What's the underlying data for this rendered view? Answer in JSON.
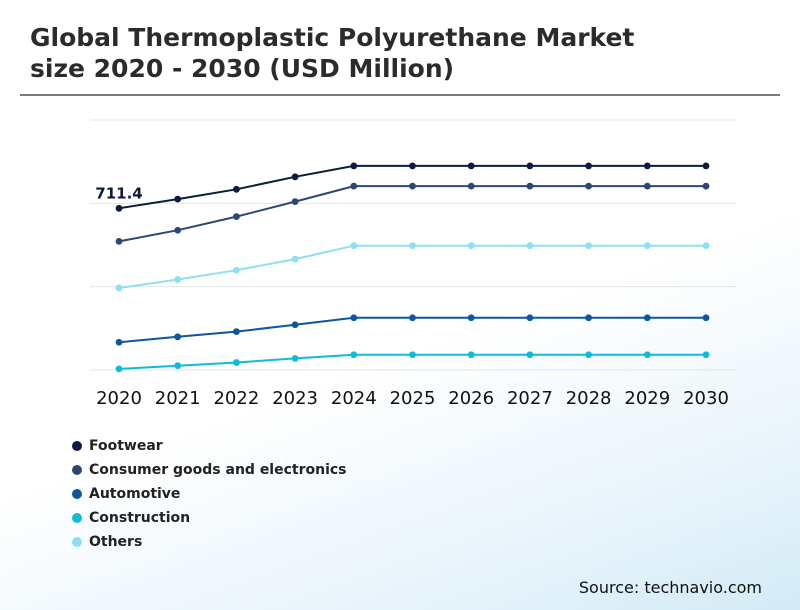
{
  "header": {
    "title_line1": "Global Thermoplastic Polyurethane Market",
    "title_line2": "size 2020 - 2030 (USD Million)"
  },
  "source": "Source: technavio.com",
  "chart_data": {
    "type": "line",
    "title": "Global Thermoplastic Polyurethane Market size 2020 - 2030 (USD Million)",
    "xlabel": "",
    "ylabel": "",
    "ylim": [
      0,
      1100
    ],
    "grid": true,
    "legend_position": "bottom-left",
    "annotation": "711.4",
    "categories": [
      "2020",
      "2021",
      "2022",
      "2023",
      "2024",
      "2025",
      "2026",
      "2027",
      "2028",
      "2029",
      "2030"
    ],
    "series": [
      {
        "name": "Footwear",
        "color": "#0d1b3e",
        "values": [
          711.4,
          752,
          795,
          850,
          898,
          898,
          898,
          898,
          898,
          898,
          898
        ]
      },
      {
        "name": "Consumer goods and electronics",
        "color": "#2f4574",
        "values": [
          566,
          615,
          675,
          741,
          809,
          809,
          809,
          809,
          809,
          809,
          809
        ]
      },
      {
        "name": "Automotive",
        "color": "#0d56a0",
        "values": [
          122,
          146,
          169,
          199,
          230,
          230,
          230,
          230,
          230,
          230,
          230
        ]
      },
      {
        "name": "Construction",
        "color": "#0fbcd8",
        "values": [
          5,
          19,
          33,
          51,
          67,
          67,
          67,
          67,
          67,
          67,
          67
        ]
      },
      {
        "name": "Others",
        "color": "#8fe0ee",
        "values": [
          361,
          398,
          439,
          488,
          547,
          547,
          547,
          547,
          547,
          547,
          547
        ]
      }
    ]
  }
}
